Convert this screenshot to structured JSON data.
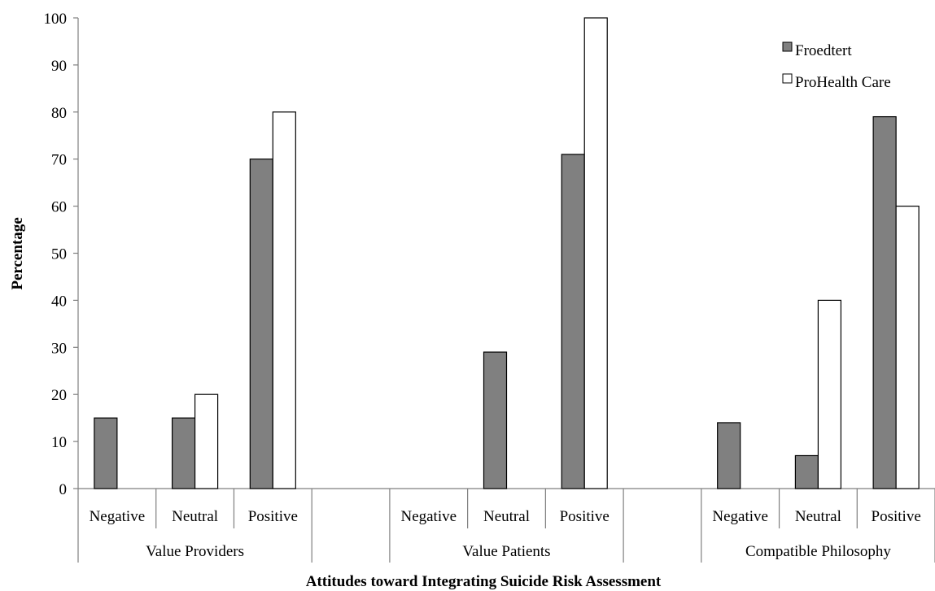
{
  "chart_data": {
    "type": "bar",
    "title": "",
    "xlabel": "Attitudes toward Integrating Suicide Risk Assessment",
    "ylabel": "Percentage",
    "ylim": [
      0,
      100
    ],
    "yticks": [
      "0",
      "10",
      "20",
      "30",
      "40",
      "50",
      "60",
      "70",
      "80",
      "90",
      "100"
    ],
    "grid": false,
    "legend_position": "top-right",
    "groups": [
      {
        "label": "Value Providers",
        "categories": [
          "Negative",
          "Neutral",
          "Positive"
        ]
      },
      {
        "label": "Value Patients",
        "categories": [
          "Negative",
          "Neutral",
          "Positive"
        ]
      },
      {
        "label": "Compatible Philosophy",
        "categories": [
          "Negative",
          "Neutral",
          "Positive"
        ]
      }
    ],
    "series": [
      {
        "name": "Froedtert",
        "color": "#808080",
        "values": [
          [
            15,
            15,
            70
          ],
          [
            0,
            29,
            71
          ],
          [
            14,
            7,
            79
          ]
        ]
      },
      {
        "name": "ProHealth Care",
        "color": "#ffffff",
        "values": [
          [
            0,
            20,
            80
          ],
          [
            0,
            0,
            100
          ],
          [
            0,
            40,
            60
          ]
        ]
      }
    ]
  }
}
